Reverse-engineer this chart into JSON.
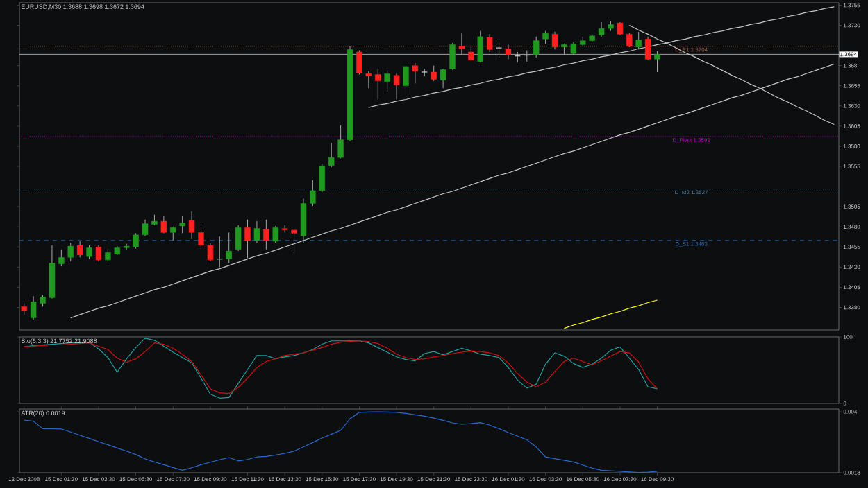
{
  "chart_data": [
    {
      "type": "candlestick",
      "title": "EURUSD,M30 1.3688 1.3698 1.3672 1.3694",
      "categories": [
        null,
        null,
        null,
        null,
        null,
        null,
        null,
        null,
        null,
        null,
        null,
        null,
        null,
        null,
        null,
        null,
        null,
        null,
        null,
        null,
        null,
        null,
        null,
        null,
        null,
        null,
        null,
        null,
        null,
        null,
        null,
        null,
        null,
        null,
        null,
        null,
        null,
        null,
        null,
        null,
        null,
        null,
        null,
        null,
        null,
        null,
        null,
        null,
        null,
        null,
        null,
        null,
        null,
        null,
        null,
        null,
        null,
        null,
        null,
        null,
        null,
        null,
        null,
        null,
        null,
        null,
        null,
        null,
        null,
        null,
        null,
        null,
        null,
        null,
        null,
        null,
        null,
        null,
        null,
        null,
        null,
        null,
        null,
        null,
        null,
        null,
        null,
        null
      ],
      "ohlc": [
        [
          1.3381,
          1.3385,
          1.3371,
          1.3376
        ],
        [
          1.3367,
          1.3394,
          1.3365,
          1.3387
        ],
        [
          1.3385,
          1.3395,
          1.3381,
          1.3393
        ],
        [
          1.3392,
          1.3457,
          1.3391,
          1.3435
        ],
        [
          1.3434,
          1.3452,
          1.3431,
          1.3442
        ],
        [
          1.3442,
          1.346,
          1.3437,
          1.3456
        ],
        [
          1.3457,
          1.3462,
          1.3442,
          1.3445
        ],
        [
          1.3443,
          1.3457,
          1.344,
          1.3454
        ],
        [
          1.3455,
          1.3457,
          1.3437,
          1.3439
        ],
        [
          1.3439,
          1.3452,
          1.3437,
          1.3448
        ],
        [
          1.3446,
          1.3456,
          1.3445,
          1.3454
        ],
        [
          1.3454,
          1.3459,
          1.3452,
          1.3456
        ],
        [
          1.3455,
          1.3472,
          1.3453,
          1.347
        ],
        [
          1.347,
          1.3489,
          1.3469,
          1.3484
        ],
        [
          1.3483,
          1.3495,
          1.3482,
          1.3487
        ],
        [
          1.3487,
          1.3493,
          1.3472,
          1.3473
        ],
        [
          1.3473,
          1.348,
          1.3463,
          1.3479
        ],
        [
          1.3481,
          1.3493,
          1.3472,
          1.3485
        ],
        [
          1.3488,
          1.3499,
          1.3465,
          1.3473
        ],
        [
          1.3473,
          1.348,
          1.3452,
          1.3457
        ],
        [
          1.3457,
          1.346,
          1.3437,
          1.3439
        ],
        [
          1.344,
          1.3468,
          1.343,
          1.344
        ],
        [
          1.344,
          1.3473,
          1.3435,
          1.345
        ],
        [
          1.3452,
          1.3482,
          1.345,
          1.3479
        ],
        [
          1.3479,
          1.3489,
          1.3441,
          1.3463
        ],
        [
          1.3463,
          1.3487,
          1.346,
          1.3478
        ],
        [
          1.3477,
          1.3489,
          1.3452,
          1.3463
        ],
        [
          1.3462,
          1.3481,
          1.346,
          1.3479
        ],
        [
          1.3478,
          1.3482,
          1.3473,
          1.3476
        ],
        [
          1.3476,
          1.3478,
          1.3447,
          1.3472
        ],
        [
          1.3469,
          1.3515,
          1.346,
          1.3509
        ],
        [
          1.3509,
          1.3538,
          1.3506,
          1.3525
        ],
        [
          1.3525,
          1.3558,
          1.3523,
          1.3555
        ],
        [
          1.3556,
          1.3584,
          1.3554,
          1.3566
        ],
        [
          1.3566,
          1.3606,
          1.3565,
          1.3588
        ],
        [
          1.3588,
          1.3704,
          1.3586,
          1.37
        ],
        [
          1.3697,
          1.3699,
          1.3669,
          1.3671
        ],
        [
          1.367,
          1.3673,
          1.3652,
          1.3667
        ],
        [
          1.3669,
          1.3676,
          1.3638,
          1.3661
        ],
        [
          1.366,
          1.3674,
          1.3648,
          1.367
        ],
        [
          1.3668,
          1.367,
          1.3638,
          1.3656
        ],
        [
          1.3655,
          1.368,
          1.3641,
          1.3679
        ],
        [
          1.368,
          1.3683,
          1.3658,
          1.3673
        ],
        [
          1.3672,
          1.3676,
          1.3667,
          1.3672
        ],
        [
          1.3672,
          1.368,
          1.3661,
          1.3663
        ],
        [
          1.3662,
          1.3676,
          1.3652,
          1.3675
        ],
        [
          1.3676,
          1.3708,
          1.3675,
          1.3706
        ],
        [
          1.3704,
          1.372,
          1.3693,
          1.3701
        ],
        [
          1.3697,
          1.3703,
          1.3686,
          1.3687
        ],
        [
          1.3685,
          1.3723,
          1.3684,
          1.3716
        ],
        [
          1.3715,
          1.3719,
          1.3697,
          1.37
        ],
        [
          1.3702,
          1.3708,
          1.369,
          1.3702
        ],
        [
          1.3701,
          1.3706,
          1.3688,
          1.3693
        ],
        [
          1.3692,
          1.3697,
          1.3684,
          1.3692
        ],
        [
          1.3693,
          1.3699,
          1.3685,
          1.3693
        ],
        [
          1.3693,
          1.3716,
          1.369,
          1.3711
        ],
        [
          1.3713,
          1.3723,
          1.3707,
          1.372
        ],
        [
          1.3719,
          1.3722,
          1.37,
          1.3703
        ],
        [
          1.3703,
          1.3707,
          1.3694,
          1.3706
        ],
        [
          1.3695,
          1.3709,
          1.3694,
          1.3707
        ],
        [
          1.3706,
          1.3716,
          1.3704,
          1.3711
        ],
        [
          1.3711,
          1.3719,
          1.3709,
          1.3717
        ],
        [
          1.3718,
          1.3734,
          1.3716,
          1.3726
        ],
        [
          1.3726,
          1.3735,
          1.3723,
          1.3731
        ],
        [
          1.3733,
          1.3734,
          1.3718,
          1.3719
        ],
        [
          1.3719,
          1.372,
          1.3703,
          1.3704
        ],
        [
          1.3703,
          1.3722,
          1.37,
          1.3712
        ],
        [
          1.3713,
          1.3716,
          1.3687,
          1.3688
        ],
        [
          1.3688,
          1.3698,
          1.3672,
          1.3694
        ],
        null,
        null,
        null,
        null,
        null,
        null,
        null,
        null,
        null,
        null,
        null,
        null,
        null,
        null,
        null,
        null,
        null,
        null,
        null
      ],
      "series": [
        {
          "type": "line",
          "color": "#c8c8c8",
          "values": [
            null,
            null,
            null,
            null,
            null,
            1.3367,
            1.3371,
            1.3375,
            1.3379,
            1.3382,
            1.3386,
            1.339,
            1.3394,
            1.3398,
            1.3402,
            1.3405,
            1.3409,
            1.3413,
            1.3417,
            1.3421,
            1.3425,
            1.3428,
            1.3432,
            1.3436,
            1.344,
            1.3444,
            1.3447,
            1.3451,
            1.3455,
            1.3459,
            1.3463,
            1.3467,
            1.3471,
            1.3475,
            1.3478,
            1.3482,
            1.3486,
            1.349,
            1.3494,
            1.3498,
            1.3501,
            1.3505,
            1.3509,
            1.3513,
            1.3517,
            1.3521,
            1.3524,
            1.3528,
            1.3532,
            1.3536,
            1.354,
            1.3544,
            1.3547,
            1.3551,
            1.3555,
            1.3559,
            1.3563,
            1.3567,
            1.3571,
            1.3574,
            1.3578,
            1.3582,
            1.3586,
            1.359,
            1.3594,
            1.3597,
            1.3601,
            1.3605,
            1.3609,
            1.3613,
            1.3617,
            1.362,
            1.3624,
            1.3628,
            1.3632,
            1.3636,
            1.364,
            1.3643,
            1.3647,
            1.3651,
            1.3655,
            1.3659,
            1.3663,
            1.3666,
            1.367,
            1.3674,
            1.3678,
            1.3682
          ]
        },
        {
          "type": "line",
          "color": "#c8c8c8",
          "values": [
            null,
            null,
            null,
            null,
            null,
            null,
            null,
            null,
            null,
            null,
            null,
            null,
            null,
            null,
            null,
            null,
            null,
            null,
            null,
            null,
            null,
            null,
            null,
            null,
            null,
            null,
            null,
            null,
            null,
            null,
            null,
            null,
            null,
            null,
            null,
            null,
            null,
            1.3628,
            1.3631,
            1.3633,
            1.3636,
            1.3638,
            1.3641,
            1.3643,
            1.3646,
            1.3648,
            1.3651,
            1.3653,
            1.3656,
            1.3658,
            1.3661,
            1.3663,
            1.3666,
            1.3668,
            1.3671,
            1.3673,
            1.3676,
            1.3678,
            1.3681,
            1.3683,
            1.3686,
            1.3688,
            1.3691,
            1.3693,
            1.3696,
            1.3698,
            1.3701,
            1.3703,
            1.3706,
            1.3708,
            1.3711,
            1.3713,
            1.3716,
            1.3718,
            1.3721,
            1.3723,
            1.3726,
            1.3728,
            1.3731,
            1.3733,
            1.3736,
            1.3738,
            1.3741,
            1.3743,
            1.3746,
            1.3748,
            1.3751,
            1.3753
          ]
        },
        {
          "type": "line",
          "color": "#c8c8c8",
          "values": [
            null,
            null,
            null,
            null,
            null,
            null,
            null,
            null,
            null,
            null,
            null,
            null,
            null,
            null,
            null,
            null,
            null,
            null,
            null,
            null,
            null,
            null,
            null,
            null,
            null,
            null,
            null,
            null,
            null,
            null,
            null,
            null,
            null,
            null,
            null,
            null,
            null,
            null,
            null,
            null,
            null,
            null,
            null,
            null,
            null,
            null,
            null,
            null,
            null,
            null,
            null,
            null,
            null,
            null,
            null,
            null,
            null,
            null,
            null,
            null,
            null,
            null,
            null,
            null,
            null,
            1.373,
            1.3724,
            1.3719,
            1.3713,
            1.3708,
            1.3702,
            1.3696,
            1.3691,
            1.3685,
            1.368,
            1.3674,
            1.3668,
            1.3663,
            1.3657,
            1.3652,
            1.3646,
            1.364,
            1.3635,
            1.3629,
            1.3624,
            1.3618,
            1.3612,
            1.3607
          ]
        },
        {
          "type": "line",
          "color": "#ffff00",
          "values": [
            null,
            null,
            null,
            null,
            null,
            null,
            null,
            null,
            null,
            null,
            null,
            null,
            null,
            null,
            null,
            null,
            null,
            null,
            null,
            null,
            null,
            null,
            null,
            null,
            null,
            null,
            null,
            null,
            null,
            null,
            null,
            null,
            null,
            null,
            null,
            null,
            null,
            null,
            null,
            null,
            null,
            null,
            null,
            null,
            null,
            null,
            null,
            null,
            null,
            null,
            null,
            null,
            null,
            null,
            null,
            null,
            null,
            null,
            1.3354,
            1.3358,
            1.3361,
            1.3365,
            1.3368,
            1.3372,
            1.3375,
            1.3379,
            1.3382,
            1.3386,
            1.3389,
            null,
            null,
            null,
            null,
            null,
            null,
            null,
            null,
            null,
            null,
            null,
            null,
            null,
            null,
            null,
            null,
            null,
            null,
            null
          ]
        }
      ],
      "ref_lines": [
        {
          "axis": "y",
          "value": 1.3704,
          "label": "D_R1 1.3704",
          "color": "#b05a48",
          "line_style": "dotted"
        },
        {
          "axis": "y",
          "value": 1.3694,
          "label": "1.3694",
          "color": "#a0a0a0",
          "line_style": "solid"
        },
        {
          "axis": "y",
          "value": 1.3592,
          "label": "D_Pivot 1.3592",
          "color": "#c000c0",
          "line_style": "dotted"
        },
        {
          "axis": "y",
          "value": 1.3527,
          "label": "D_M2 1.3527",
          "color": "#4a7fa0",
          "line_style": "dotted"
        },
        {
          "axis": "y",
          "value": 1.3463,
          "label": "D_S1 1.3463",
          "color": "#2a70c8",
          "line_style": "dashed"
        }
      ],
      "ylim": [
        1.3352,
        1.3758
      ],
      "yticks": [
        1.3755,
        {
          "value": 1.373,
          "label": "1.3730"
        },
        1.368,
        1.3655,
        {
          "value": 1.363,
          "label": "1.3630"
        },
        1.3605,
        {
          "value": 1.358,
          "label": "1.3580"
        },
        1.3555,
        1.3505,
        {
          "value": 1.348,
          "label": "1.3480"
        },
        1.3455,
        {
          "value": 1.343,
          "label": "1.3430"
        },
        1.3405,
        {
          "value": 1.338,
          "label": "1.3380"
        }
      ],
      "tick_labels": "y"
    },
    {
      "type": "line",
      "title": "Sto(5,3,3) 21.7752 21.9088",
      "categories": [
        null,
        null,
        null,
        null,
        null,
        null,
        null,
        null,
        null,
        null,
        null,
        null,
        null,
        null,
        null,
        null,
        null,
        null,
        null,
        null,
        null,
        null,
        null,
        null,
        null,
        null,
        null,
        null,
        null,
        null,
        null,
        null,
        null,
        null,
        null,
        null,
        null,
        null,
        null,
        null,
        null,
        null,
        null,
        null,
        null,
        null,
        null,
        null,
        null,
        null,
        null,
        null,
        null,
        null,
        null,
        null,
        null,
        null,
        null,
        null,
        null,
        null,
        null,
        null,
        null,
        null,
        null,
        null,
        null,
        null,
        null,
        null,
        null,
        null,
        null,
        null,
        null,
        null,
        null,
        null,
        null,
        null,
        null,
        null,
        null,
        null,
        null,
        null
      ],
      "series": [
        {
          "color": "#20a0a0",
          "values": [
            85,
            87,
            88,
            89,
            90,
            91,
            91,
            92,
            82,
            69,
            47,
            67,
            84,
            98,
            95,
            86,
            77,
            69,
            61,
            38,
            14,
            8,
            9,
            30,
            51,
            72,
            72,
            67,
            70,
            72,
            76,
            81,
            89,
            94,
            94,
            94,
            94,
            91,
            84,
            77,
            70,
            66,
            64,
            75,
            78,
            73,
            78,
            83,
            79,
            74,
            72,
            69,
            54,
            35,
            23,
            29,
            59,
            76,
            71,
            60,
            54,
            59,
            68,
            80,
            85,
            68,
            51,
            25,
            22,
            null,
            null,
            null,
            null,
            null,
            null,
            null,
            null,
            null,
            null,
            null,
            null,
            null,
            null,
            null,
            null,
            null,
            null,
            null
          ]
        },
        {
          "color": "#d01010",
          "values": [
            85,
            86,
            87,
            88,
            88,
            89,
            90,
            91,
            86,
            81,
            68,
            62,
            67,
            78,
            91,
            89,
            83,
            74,
            63,
            43,
            22,
            16,
            15,
            24,
            38,
            54,
            63,
            67,
            72,
            74,
            76,
            80,
            84,
            89,
            92,
            93,
            94,
            93,
            90,
            83,
            74,
            69,
            66,
            67,
            70,
            72,
            75,
            77,
            79,
            78,
            76,
            72,
            61,
            45,
            32,
            25,
            32,
            48,
            63,
            68,
            63,
            58,
            64,
            71,
            78,
            76,
            62,
            37,
            22,
            null,
            null,
            null,
            null,
            null,
            null,
            null,
            null,
            null,
            null,
            null,
            null,
            null,
            null,
            null,
            null,
            null,
            null,
            null
          ]
        }
      ],
      "ylim": [
        0,
        100
      ],
      "yticks": [
        0,
        100
      ],
      "tick_labels": "y"
    },
    {
      "type": "line",
      "title": "ATR(20) 0.0019",
      "categories": [
        "12 Dec 2008",
        null,
        null,
        null,
        "15 Dec 01:30",
        null,
        null,
        null,
        "15 Dec 03:30",
        null,
        null,
        null,
        "15 Dec 05:30",
        null,
        null,
        null,
        "15 Dec 07:30",
        null,
        null,
        null,
        "15 Dec 09:30",
        null,
        null,
        null,
        "15 Dec 11:30",
        null,
        null,
        null,
        "15 Dec 13:30",
        null,
        null,
        null,
        "15 Dec 15:30",
        null,
        null,
        null,
        "15 Dec 17:30",
        null,
        null,
        null,
        "15 Dec 19:30",
        null,
        null,
        null,
        "15 Dec 21:30",
        null,
        null,
        null,
        "15 Dec 23:30",
        null,
        null,
        null,
        "16 Dec 01:30",
        null,
        null,
        null,
        "16 Dec 03:30",
        null,
        null,
        null,
        "16 Dec 05:30",
        null,
        null,
        null,
        "16 Dec 07:30",
        null,
        null,
        null,
        "16 Dec 09:30",
        null,
        null,
        null,
        null,
        null,
        null,
        null,
        null,
        null,
        null,
        null,
        null,
        null,
        null,
        null,
        null,
        null,
        null,
        null
      ],
      "series": [
        {
          "color": "#2a6ad0",
          "values": [
            0.0037,
            0.00366,
            0.00339,
            0.00339,
            0.00338,
            0.00327,
            0.00315,
            0.00304,
            0.00292,
            0.00281,
            0.00269,
            0.00258,
            0.00246,
            0.0023,
            0.00219,
            0.00209,
            0.00199,
            0.00189,
            0.00198,
            0.00209,
            0.00218,
            0.00227,
            0.00235,
            0.00223,
            0.00228,
            0.00237,
            0.00239,
            0.00244,
            0.0025,
            0.00258,
            0.00273,
            0.00289,
            0.00305,
            0.00319,
            0.00333,
            0.00375,
            0.00398,
            0.00399,
            0.004,
            0.00399,
            0.00398,
            0.00394,
            0.00389,
            0.00384,
            0.00377,
            0.00369,
            0.0036,
            0.00355,
            0.00357,
            0.00361,
            0.00352,
            0.00339,
            0.00325,
            0.00312,
            0.00299,
            0.00273,
            0.00237,
            0.00231,
            0.00225,
            0.00219,
            0.00208,
            0.00197,
            0.00189,
            0.00187,
            0.00185,
            0.00183,
            0.00181,
            0.00182,
            0.00185,
            null,
            null,
            null,
            null,
            null,
            null,
            null,
            null,
            null,
            null,
            null,
            null,
            null,
            null,
            null,
            null,
            null,
            null,
            null
          ]
        }
      ],
      "ylim": [
        0.0018,
        0.0041
      ],
      "yticks": [
        0.004,
        0.0018
      ]
    }
  ]
}
